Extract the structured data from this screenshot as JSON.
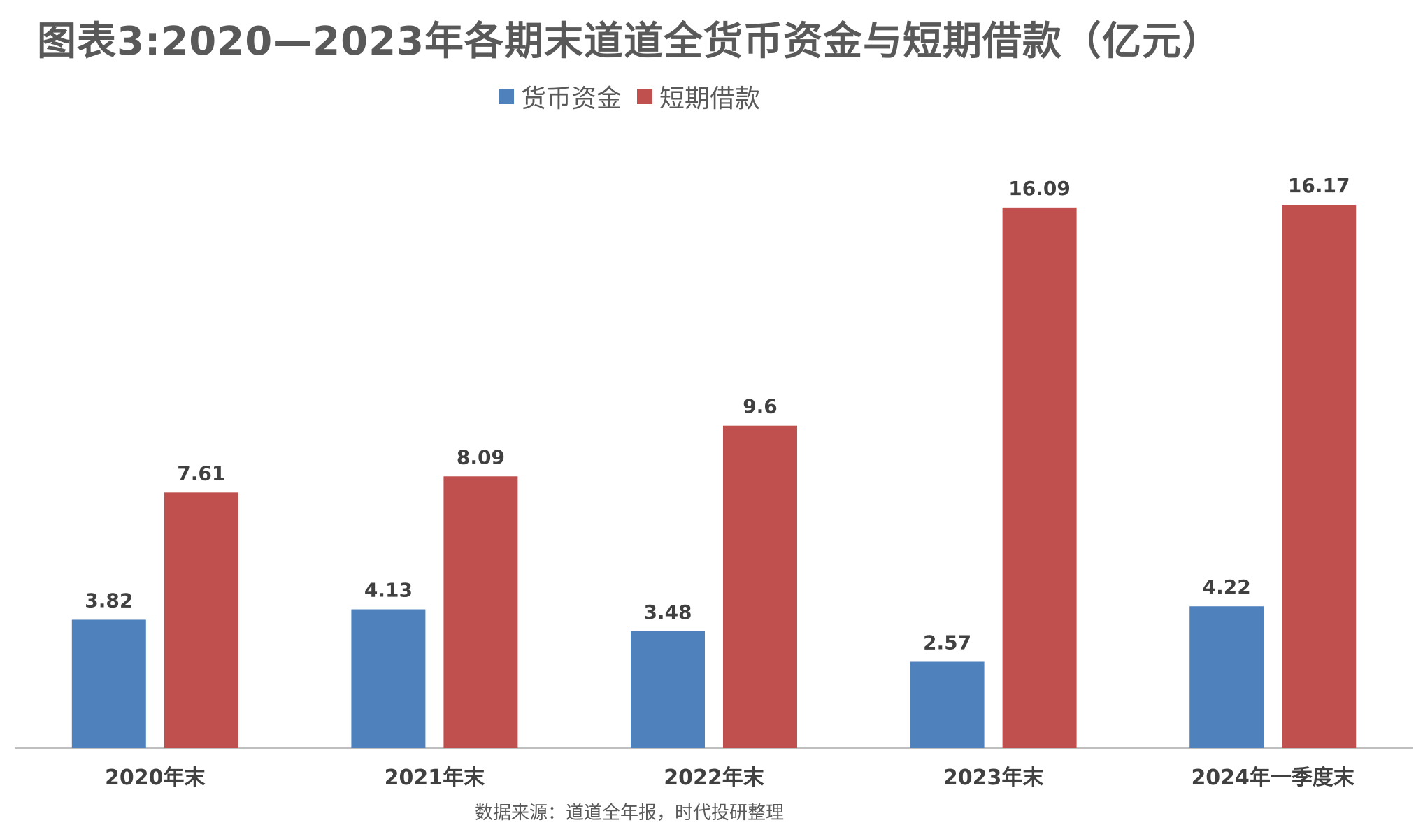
{
  "chart_data": {
    "type": "bar",
    "title": "图表3:2020—2023年各期末道道全货币资金与短期借款（亿元）",
    "categories": [
      "2020年末",
      "2021年末",
      "2022年末",
      "2023年末",
      "2024年一季度末"
    ],
    "series": [
      {
        "name": "货币资金",
        "values": [
          3.82,
          4.13,
          3.48,
          2.57,
          4.22
        ],
        "labels": [
          "3.82",
          "4.13",
          "3.48",
          "2.57",
          "4.22"
        ],
        "color": "#4F81BD"
      },
      {
        "name": "短期借款",
        "values": [
          7.61,
          8.09,
          9.6,
          16.09,
          16.17
        ],
        "labels": [
          "7.61",
          "8.09",
          "9.6",
          "16.09",
          "16.17"
        ],
        "color": "#C0504D"
      }
    ],
    "ylim": [
      0,
      18.9
    ],
    "grid": false,
    "legend_position": "top-center",
    "xlabel": "",
    "ylabel": ""
  },
  "legend": {
    "item0": "货币资金",
    "item1": "短期借款"
  },
  "source": "数据来源：道道全年报，时代投研整理",
  "colors": {
    "axis": "#BFBFBF",
    "text": "#595959"
  }
}
